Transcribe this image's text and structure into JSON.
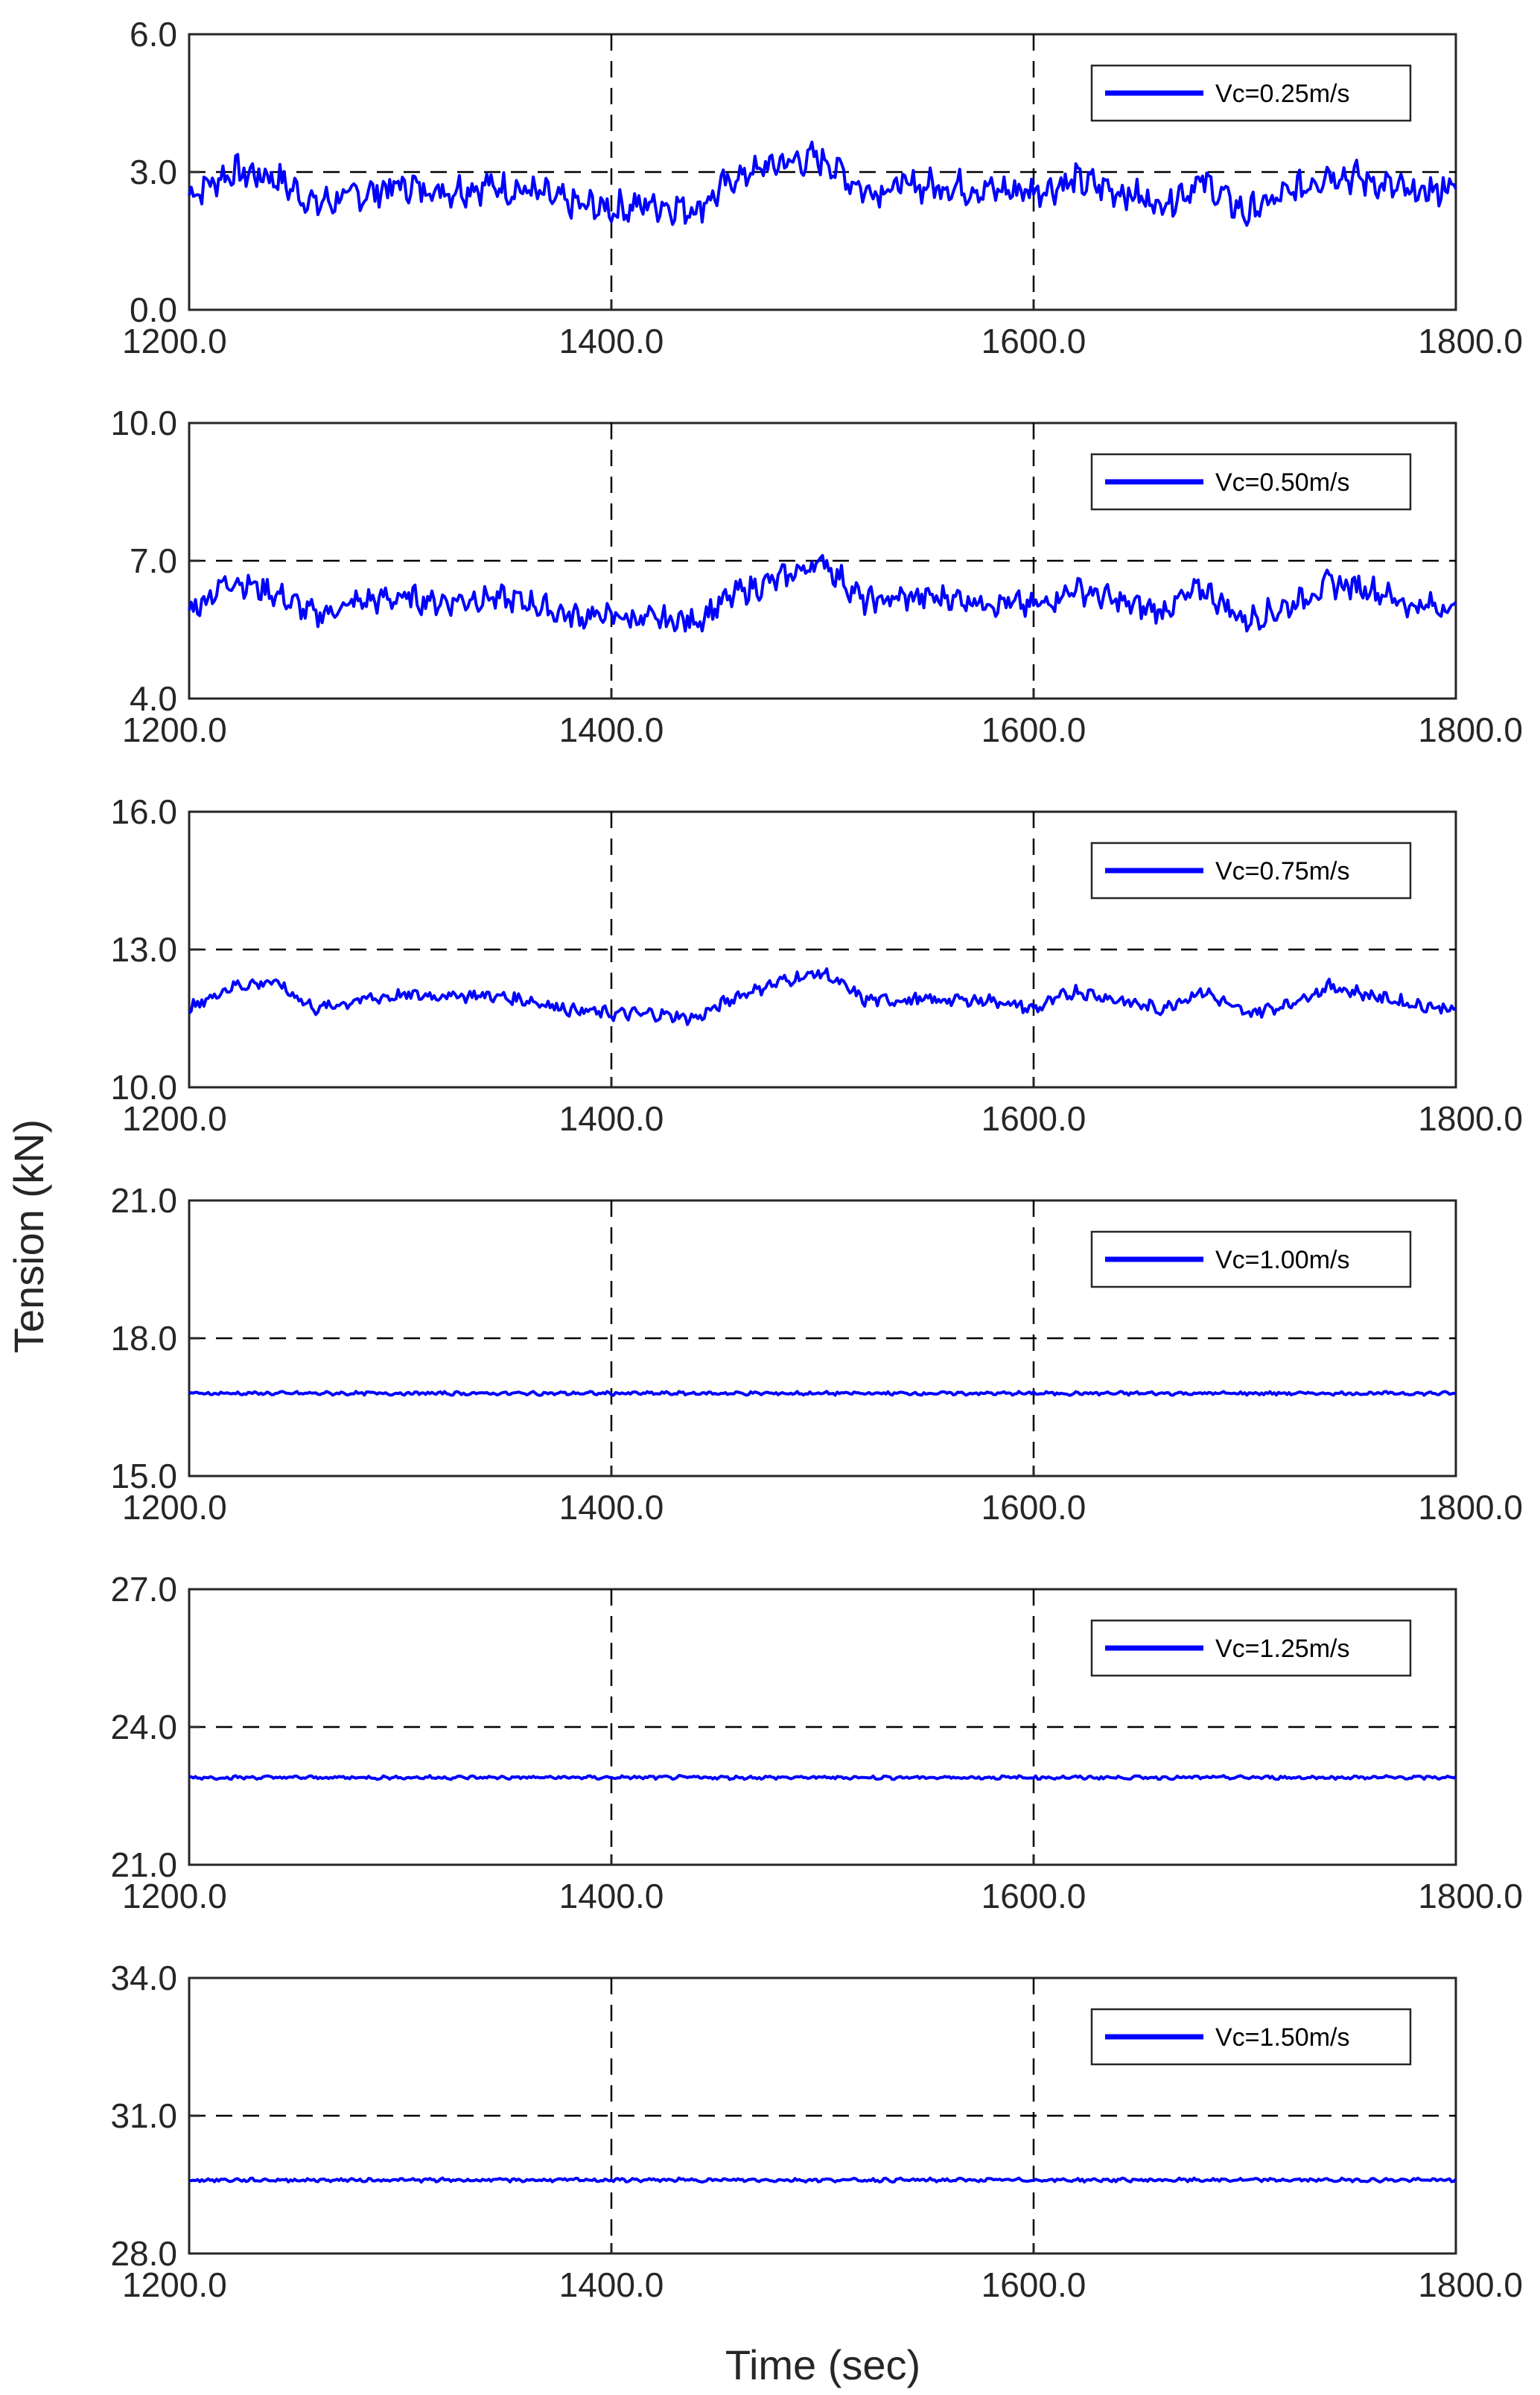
{
  "figure": {
    "ylabel": "Tension (kN)",
    "xlabel": "Time (sec)"
  },
  "colors": {
    "series": "#0000ff",
    "grid": "#000000",
    "axes": "#262626"
  },
  "chart_data": [
    {
      "type": "line",
      "legend": "Vc=0.25m/s",
      "xlim": [
        1200,
        1800
      ],
      "ylim": [
        0,
        6
      ],
      "xticks": [
        "1200.0",
        "1400.0",
        "1600.0",
        "1800.0"
      ],
      "yticks": [
        "0.0",
        "3.0",
        "6.0"
      ],
      "grid": "dashed at x=1400, x=1600, y=3.0",
      "legend_position": "top-right",
      "series": [
        {
          "name": "Vc=0.25m/s",
          "x": [
            1200,
            1220,
            1240,
            1260,
            1280,
            1300,
            1320,
            1340,
            1360,
            1380,
            1400,
            1420,
            1440,
            1460,
            1480,
            1500,
            1520,
            1540,
            1560,
            1580,
            1600,
            1620,
            1640,
            1660,
            1680,
            1700,
            1720,
            1740,
            1760,
            1780,
            1800
          ],
          "y": [
            2.5,
            3.0,
            2.9,
            2.3,
            2.5,
            2.7,
            2.6,
            2.7,
            2.6,
            2.3,
            2.2,
            2.3,
            2.2,
            2.9,
            3.2,
            3.3,
            2.6,
            2.7,
            2.7,
            2.6,
            2.6,
            2.8,
            2.6,
            2.3,
            2.8,
            2.1,
            2.5,
            3.0,
            2.8,
            2.5,
            2.7
          ]
        }
      ]
    },
    {
      "type": "line",
      "legend": "Vc=0.50m/s",
      "xlim": [
        1200,
        1800
      ],
      "ylim": [
        4,
        10
      ],
      "xticks": [
        "1200.0",
        "1400.0",
        "1600.0",
        "1800.0"
      ],
      "yticks": [
        "4.0",
        "7.0",
        "10.0"
      ],
      "grid": "dashed at x=1400, x=1600, y=7.0",
      "legend_position": "top-right",
      "series": [
        {
          "name": "Vc=0.50m/s",
          "x": [
            1200,
            1220,
            1240,
            1260,
            1280,
            1300,
            1320,
            1340,
            1360,
            1380,
            1400,
            1420,
            1440,
            1460,
            1480,
            1500,
            1520,
            1540,
            1560,
            1580,
            1600,
            1620,
            1640,
            1660,
            1680,
            1700,
            1720,
            1740,
            1760,
            1780,
            1800
          ],
          "y": [
            5.9,
            6.6,
            6.3,
            5.8,
            6.1,
            6.2,
            6.1,
            6.2,
            6.1,
            5.8,
            5.8,
            5.7,
            5.7,
            6.3,
            6.6,
            7.0,
            6.1,
            6.2,
            6.2,
            6.1,
            6.0,
            6.4,
            6.1,
            5.9,
            6.4,
            5.7,
            6.0,
            6.5,
            6.4,
            6.0,
            6.0
          ]
        }
      ]
    },
    {
      "type": "line",
      "legend": "Vc=0.75m/s",
      "xlim": [
        1200,
        1800
      ],
      "ylim": [
        10,
        16
      ],
      "xticks": [
        "1200.0",
        "1400.0",
        "1600.0",
        "1800.0"
      ],
      "yticks": [
        "10.0",
        "13.0",
        "16.0"
      ],
      "grid": "dashed at x=1400, x=1600, y=13.0",
      "legend_position": "top-right",
      "series": [
        {
          "name": "Vc=0.75m/s",
          "x": [
            1200,
            1220,
            1240,
            1260,
            1280,
            1300,
            1320,
            1340,
            1360,
            1380,
            1400,
            1420,
            1440,
            1460,
            1480,
            1500,
            1520,
            1540,
            1560,
            1580,
            1600,
            1620,
            1640,
            1660,
            1680,
            1700,
            1720,
            1740,
            1760,
            1780,
            1800
          ],
          "y": [
            11.7,
            12.2,
            12.3,
            11.7,
            11.9,
            12.0,
            12.0,
            12.0,
            11.9,
            11.7,
            11.6,
            11.6,
            11.5,
            12.0,
            12.3,
            12.5,
            11.9,
            11.9,
            11.9,
            11.9,
            11.7,
            12.1,
            11.9,
            11.7,
            12.1,
            11.6,
            11.8,
            12.2,
            12.0,
            11.8,
            11.7
          ]
        }
      ]
    },
    {
      "type": "line",
      "legend": "Vc=1.00m/s",
      "xlim": [
        1200,
        1800
      ],
      "ylim": [
        15,
        21
      ],
      "xticks": [
        "1200.0",
        "1400.0",
        "1600.0",
        "1800.0"
      ],
      "yticks": [
        "15.0",
        "18.0",
        "21.0"
      ],
      "grid": "dashed at x=1400, x=1600, y=18.0",
      "legend_position": "top-right",
      "series": [
        {
          "name": "Vc=1.00m/s",
          "x": [
            1200,
            1300,
            1400,
            1500,
            1600,
            1700,
            1800
          ],
          "y": [
            16.8,
            16.8,
            16.8,
            16.8,
            16.8,
            16.8,
            16.8
          ]
        }
      ]
    },
    {
      "type": "line",
      "legend": "Vc=1.25m/s",
      "xlim": [
        1200,
        1800
      ],
      "ylim": [
        21,
        27
      ],
      "xticks": [
        "1200.0",
        "1400.0",
        "1600.0",
        "1800.0"
      ],
      "yticks": [
        "21.0",
        "24.0",
        "27.0"
      ],
      "grid": "dashed at x=1400, x=1600, y=24.0",
      "legend_position": "top-right",
      "series": [
        {
          "name": "Vc=1.25m/s",
          "x": [
            1200,
            1300,
            1400,
            1500,
            1600,
            1700,
            1800
          ],
          "y": [
            22.9,
            22.9,
            22.9,
            22.9,
            22.9,
            22.9,
            22.9
          ]
        }
      ]
    },
    {
      "type": "line",
      "legend": "Vc=1.50m/s",
      "xlim": [
        1200,
        1800
      ],
      "ylim": [
        28,
        34
      ],
      "xticks": [
        "1200.0",
        "1400.0",
        "1600.0",
        "1800.0"
      ],
      "yticks": [
        "28.0",
        "31.0",
        "34.0"
      ],
      "grid": "dashed at x=1400, x=1600, y=31.0",
      "legend_position": "top-right",
      "series": [
        {
          "name": "Vc=1.50m/s",
          "x": [
            1200,
            1300,
            1400,
            1500,
            1600,
            1700,
            1800
          ],
          "y": [
            29.6,
            29.6,
            29.6,
            29.6,
            29.6,
            29.6,
            29.6
          ]
        }
      ]
    }
  ]
}
